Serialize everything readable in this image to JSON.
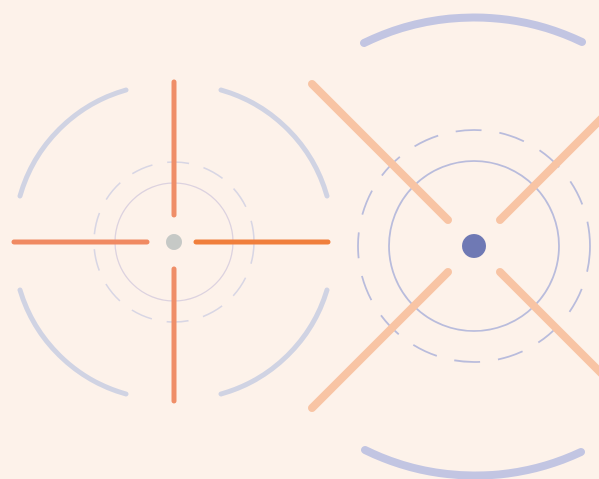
{
  "colors": {
    "background": "#fdf2ea",
    "left_arc": "#d0d3e3",
    "left_dash": "#d8d6e4",
    "left_ring": "#dcd2df",
    "left_cross_vertical": "#ef8e68",
    "left_cross_horizontal_left": "#f08a62",
    "left_cross_horizontal_right": "#f07f3c",
    "left_center_dot": "#c6c9c6",
    "right_cross": "#f8c4a4",
    "right_ring": "#b9bcdc",
    "right_dash": "#b9bcdc",
    "right_outer_arc": "#c2c5e2",
    "right_center_dot": "#6f79b4"
  },
  "icons": {
    "left": "crosshair-icon",
    "right": "target-x-icon"
  }
}
